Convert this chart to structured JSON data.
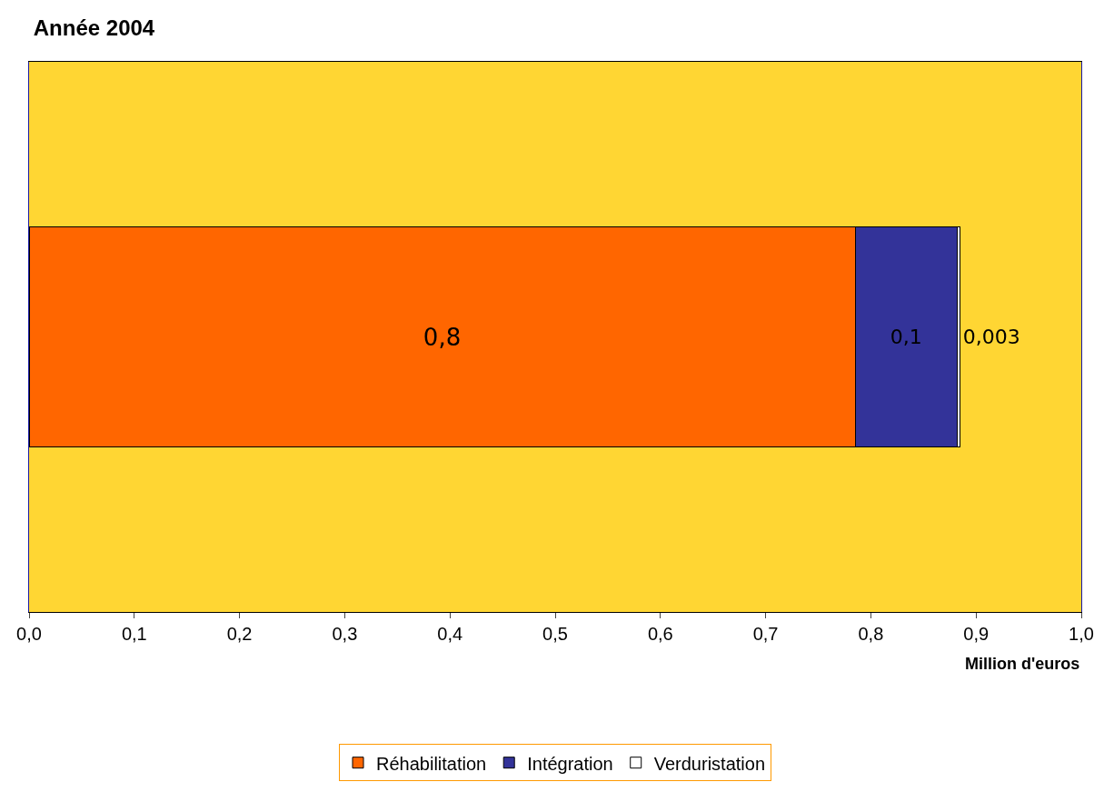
{
  "chart_data": {
    "type": "bar",
    "orientation": "horizontal",
    "stacked": true,
    "title": "Année 2004",
    "xlabel": "Million d'euros",
    "categories": [
      null
    ],
    "series": [
      {
        "name": "Réhabilitation",
        "color": "#ff6600",
        "values": [
          0.785
        ],
        "value_labels": [
          "0,8"
        ]
      },
      {
        "name": "Intégration",
        "color": "#333399",
        "values": [
          0.097
        ],
        "value_labels": [
          "0,1"
        ]
      },
      {
        "name": "Verduristation",
        "color": "#ffffff",
        "values": [
          0.003
        ],
        "value_labels": [
          "0,003"
        ]
      }
    ],
    "xlim": [
      0,
      1
    ],
    "xticks": [
      {
        "value": 0,
        "label": "0,0"
      },
      {
        "value": 0.1,
        "label": "0,1"
      },
      {
        "value": 0.2,
        "label": "0,2"
      },
      {
        "value": 0.3,
        "label": "0,3"
      },
      {
        "value": 0.4,
        "label": "0,4"
      },
      {
        "value": 0.5,
        "label": "0,5"
      },
      {
        "value": 0.6,
        "label": "0,6"
      },
      {
        "value": 0.7,
        "label": "0,7"
      },
      {
        "value": 0.8,
        "label": "0,8"
      },
      {
        "value": 0.9,
        "label": "0,9"
      },
      {
        "value": 1,
        "label": "1,0"
      }
    ],
    "tick_labels": "x",
    "grid": false,
    "legend": "bottom"
  }
}
